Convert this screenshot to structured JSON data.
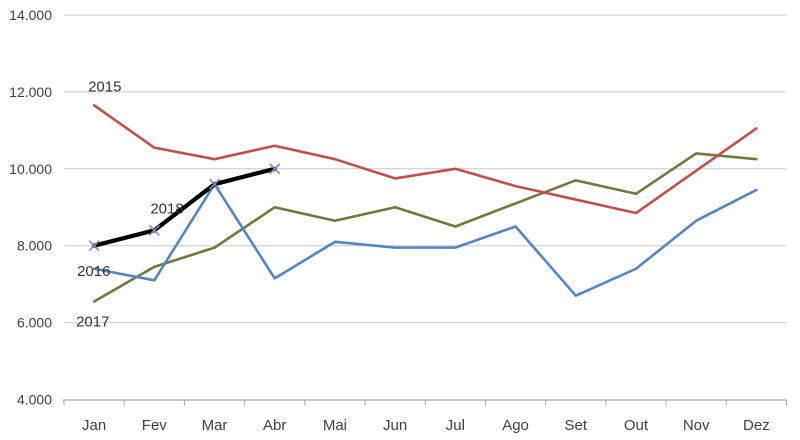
{
  "chart_data": {
    "type": "line",
    "title": "",
    "xlabel": "",
    "ylabel": "",
    "categories": [
      "Jan",
      "Fev",
      "Mar",
      "Abr",
      "Mai",
      "Jun",
      "Jul",
      "Ago",
      "Set",
      "Out",
      "Nov",
      "Dez"
    ],
    "y_axis": {
      "min": 4000,
      "max": 14000,
      "step": 2000,
      "tick_labels": [
        "4.000",
        "6.000",
        "8.000",
        "10.000",
        "12.000",
        "14.000"
      ]
    },
    "grid": true,
    "legend_position": "inline-labels",
    "colors": {
      "grid": "#c9c9c9",
      "axis_line": "#a6a6a6",
      "axis_text": "#404040",
      "label_text": "#333333"
    },
    "series": [
      {
        "name": "2015",
        "color": "#c0504d",
        "line_width": 2.6,
        "marker": "none",
        "values": [
          11650,
          10550,
          10250,
          10600,
          10250,
          9750,
          10000,
          9550,
          9200,
          8850,
          9950,
          11050
        ]
      },
      {
        "name": "2016",
        "color": "#5585c2",
        "line_width": 2.6,
        "marker": "none",
        "values": [
          7400,
          7100,
          9600,
          7150,
          8100,
          7950,
          7950,
          8500,
          6700,
          7400,
          8650,
          9450
        ]
      },
      {
        "name": "2017",
        "color": "#6e7b3c",
        "line_width": 2.6,
        "marker": "none",
        "values": [
          6550,
          7450,
          7950,
          9000,
          8650,
          9000,
          8500,
          9100,
          9700,
          9350,
          10400,
          10250
        ]
      },
      {
        "name": "2018",
        "color": "#000000",
        "line_width": 4.2,
        "marker": "x",
        "marker_color": "#9183c2",
        "values": [
          8000,
          8400,
          9600,
          10000
        ]
      }
    ],
    "annotations": [
      {
        "text": "2015",
        "series": "2015"
      },
      {
        "text": "2018",
        "series": "2018"
      },
      {
        "text": "2016",
        "series": "2016"
      },
      {
        "text": "2017",
        "series": "2017"
      }
    ]
  }
}
